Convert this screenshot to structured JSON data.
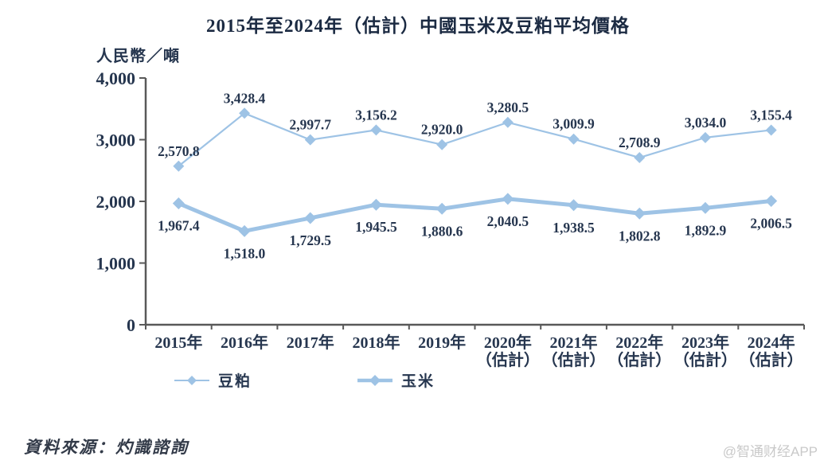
{
  "page": {
    "source_label": "資料來源：灼識諮詢",
    "watermark": "@智通财经APP"
  },
  "chart_data": {
    "type": "line",
    "title": "2015年至2024年（估計）中國玉米及豆粕平均價格",
    "ylabel": "人民幣／噸",
    "categories": [
      "2015年",
      "2016年",
      "2017年",
      "2018年",
      "2019年",
      "2020年",
      "2021年",
      "2022年",
      "2023年",
      "2024年"
    ],
    "category_sublabels": [
      "",
      "",
      "",
      "",
      "",
      "（估計）",
      "（估計）",
      "（估計）",
      "（估計）",
      "（估計）"
    ],
    "series": [
      {
        "name": "豆粕",
        "style": "thin",
        "values": [
          2570.8,
          3428.4,
          2997.7,
          3156.2,
          2920.0,
          3280.5,
          3009.9,
          2708.9,
          3034.0,
          3155.4
        ]
      },
      {
        "name": "玉米",
        "style": "thick",
        "values": [
          1967.4,
          1518.0,
          1729.5,
          1945.5,
          1880.6,
          2040.5,
          1938.5,
          1802.8,
          1892.9,
          2006.5
        ]
      }
    ],
    "ylim": [
      0,
      4000
    ],
    "yticks": [
      0,
      1000,
      2000,
      3000,
      4000
    ],
    "grid": false,
    "legend_position": "bottom",
    "marker": "diamond",
    "colors": {
      "line_blue": "#9ec3e5",
      "label_text": "#26364f",
      "axis_gray": "#595959"
    }
  }
}
